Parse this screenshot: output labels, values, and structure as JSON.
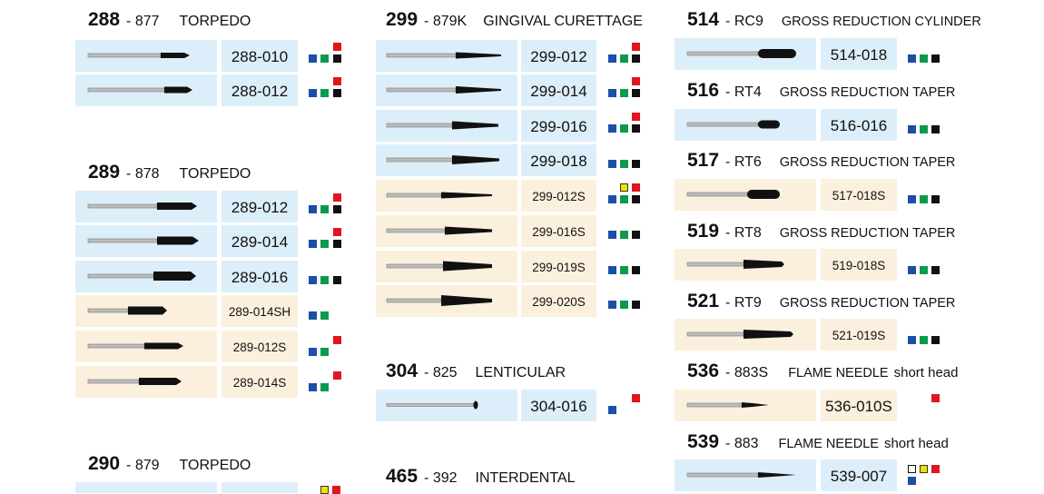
{
  "sections": [
    {
      "num": "288",
      "code": "877",
      "title": "TORPEDO",
      "items": [
        {
          "code": "288-010",
          "bg": "blue",
          "sizes": [
            "red",
            "navy",
            "green",
            "black"
          ]
        },
        {
          "code": "288-012",
          "bg": "blue",
          "sizes": [
            "red",
            "navy",
            "green",
            "black"
          ]
        }
      ]
    },
    {
      "num": "289",
      "code": "878",
      "title": "TORPEDO",
      "items": [
        {
          "code": "289-012",
          "bg": "blue",
          "sizes": [
            "red",
            "navy",
            "green",
            "black"
          ]
        },
        {
          "code": "289-014",
          "bg": "blue",
          "sizes": [
            "red",
            "navy",
            "green",
            "black"
          ]
        },
        {
          "code": "289-016",
          "bg": "blue",
          "sizes": [
            "navy",
            "green",
            "black"
          ]
        },
        {
          "code": "289-014SH",
          "bg": "cream",
          "sizes": [
            "navy",
            "green"
          ]
        },
        {
          "code": "289-012S",
          "bg": "cream",
          "sizes": [
            "red",
            "navy",
            "green"
          ]
        },
        {
          "code": "289-014S",
          "bg": "cream",
          "sizes": [
            "red",
            "navy",
            "green"
          ]
        }
      ]
    },
    {
      "num": "290",
      "code": "879",
      "title": "TORPEDO",
      "items": []
    },
    {
      "num": "299",
      "code": "879K",
      "title": "GINGIVAL CURETTAGE",
      "items": [
        {
          "code": "299-012",
          "bg": "blue",
          "sizes": [
            "red",
            "navy",
            "green",
            "black"
          ]
        },
        {
          "code": "299-014",
          "bg": "blue",
          "sizes": [
            "red",
            "navy",
            "green",
            "black"
          ]
        },
        {
          "code": "299-016",
          "bg": "blue",
          "sizes": [
            "red",
            "navy",
            "green",
            "black"
          ]
        },
        {
          "code": "299-018",
          "bg": "blue",
          "sizes": [
            "navy",
            "green",
            "black"
          ]
        },
        {
          "code": "299-012S",
          "bg": "cream",
          "sizes": [
            "yellow",
            "red",
            "navy",
            "green",
            "black"
          ]
        },
        {
          "code": "299-016S",
          "bg": "cream",
          "sizes": [
            "navy",
            "green",
            "black"
          ]
        },
        {
          "code": "299-019S",
          "bg": "cream",
          "sizes": [
            "navy",
            "green",
            "black"
          ]
        },
        {
          "code": "299-020S",
          "bg": "cream",
          "sizes": [
            "navy",
            "green",
            "black"
          ]
        }
      ]
    },
    {
      "num": "304",
      "code": "825",
      "title": "LENTICULAR",
      "items": [
        {
          "code": "304-016",
          "bg": "blue",
          "sizes": [
            "red",
            "navy"
          ]
        }
      ]
    },
    {
      "num": "465",
      "code": "392",
      "title": "INTERDENTAL",
      "items": []
    },
    {
      "num": "514",
      "code": "RC9",
      "title": "GROSS REDUCTION CYLINDER",
      "items": [
        {
          "code": "514-018",
          "bg": "blue",
          "sizes": [
            "navy",
            "green",
            "black"
          ]
        }
      ]
    },
    {
      "num": "516",
      "code": "RT4",
      "title": "GROSS REDUCTION TAPER",
      "items": [
        {
          "code": "516-016",
          "bg": "blue",
          "sizes": [
            "navy",
            "green",
            "black"
          ]
        }
      ]
    },
    {
      "num": "517",
      "code": "RT6",
      "title": "GROSS REDUCTION TAPER",
      "items": [
        {
          "code": "517-018S",
          "bg": "cream",
          "sizes": [
            "navy",
            "green",
            "black"
          ]
        }
      ]
    },
    {
      "num": "519",
      "code": "RT8",
      "title": "GROSS REDUCTION TAPER",
      "items": [
        {
          "code": "519-018S",
          "bg": "cream",
          "sizes": [
            "navy",
            "green",
            "black"
          ]
        }
      ]
    },
    {
      "num": "521",
      "code": "RT9",
      "title": "GROSS REDUCTION TAPER",
      "items": [
        {
          "code": "521-019S",
          "bg": "cream",
          "sizes": [
            "navy",
            "green",
            "black"
          ]
        }
      ]
    },
    {
      "num": "536",
      "code": "883S",
      "title": "FLAME NEEDLE",
      "note": "short head",
      "items": [
        {
          "code": "536-010S",
          "bg": "cream",
          "sizes": [
            "red"
          ]
        }
      ]
    },
    {
      "num": "539",
      "code": "883",
      "title": "FLAME NEEDLE",
      "note": "short head",
      "items": [
        {
          "code": "539-007",
          "bg": "blue",
          "sizes": [
            "white",
            "yellow",
            "red",
            "navy"
          ]
        }
      ]
    }
  ]
}
